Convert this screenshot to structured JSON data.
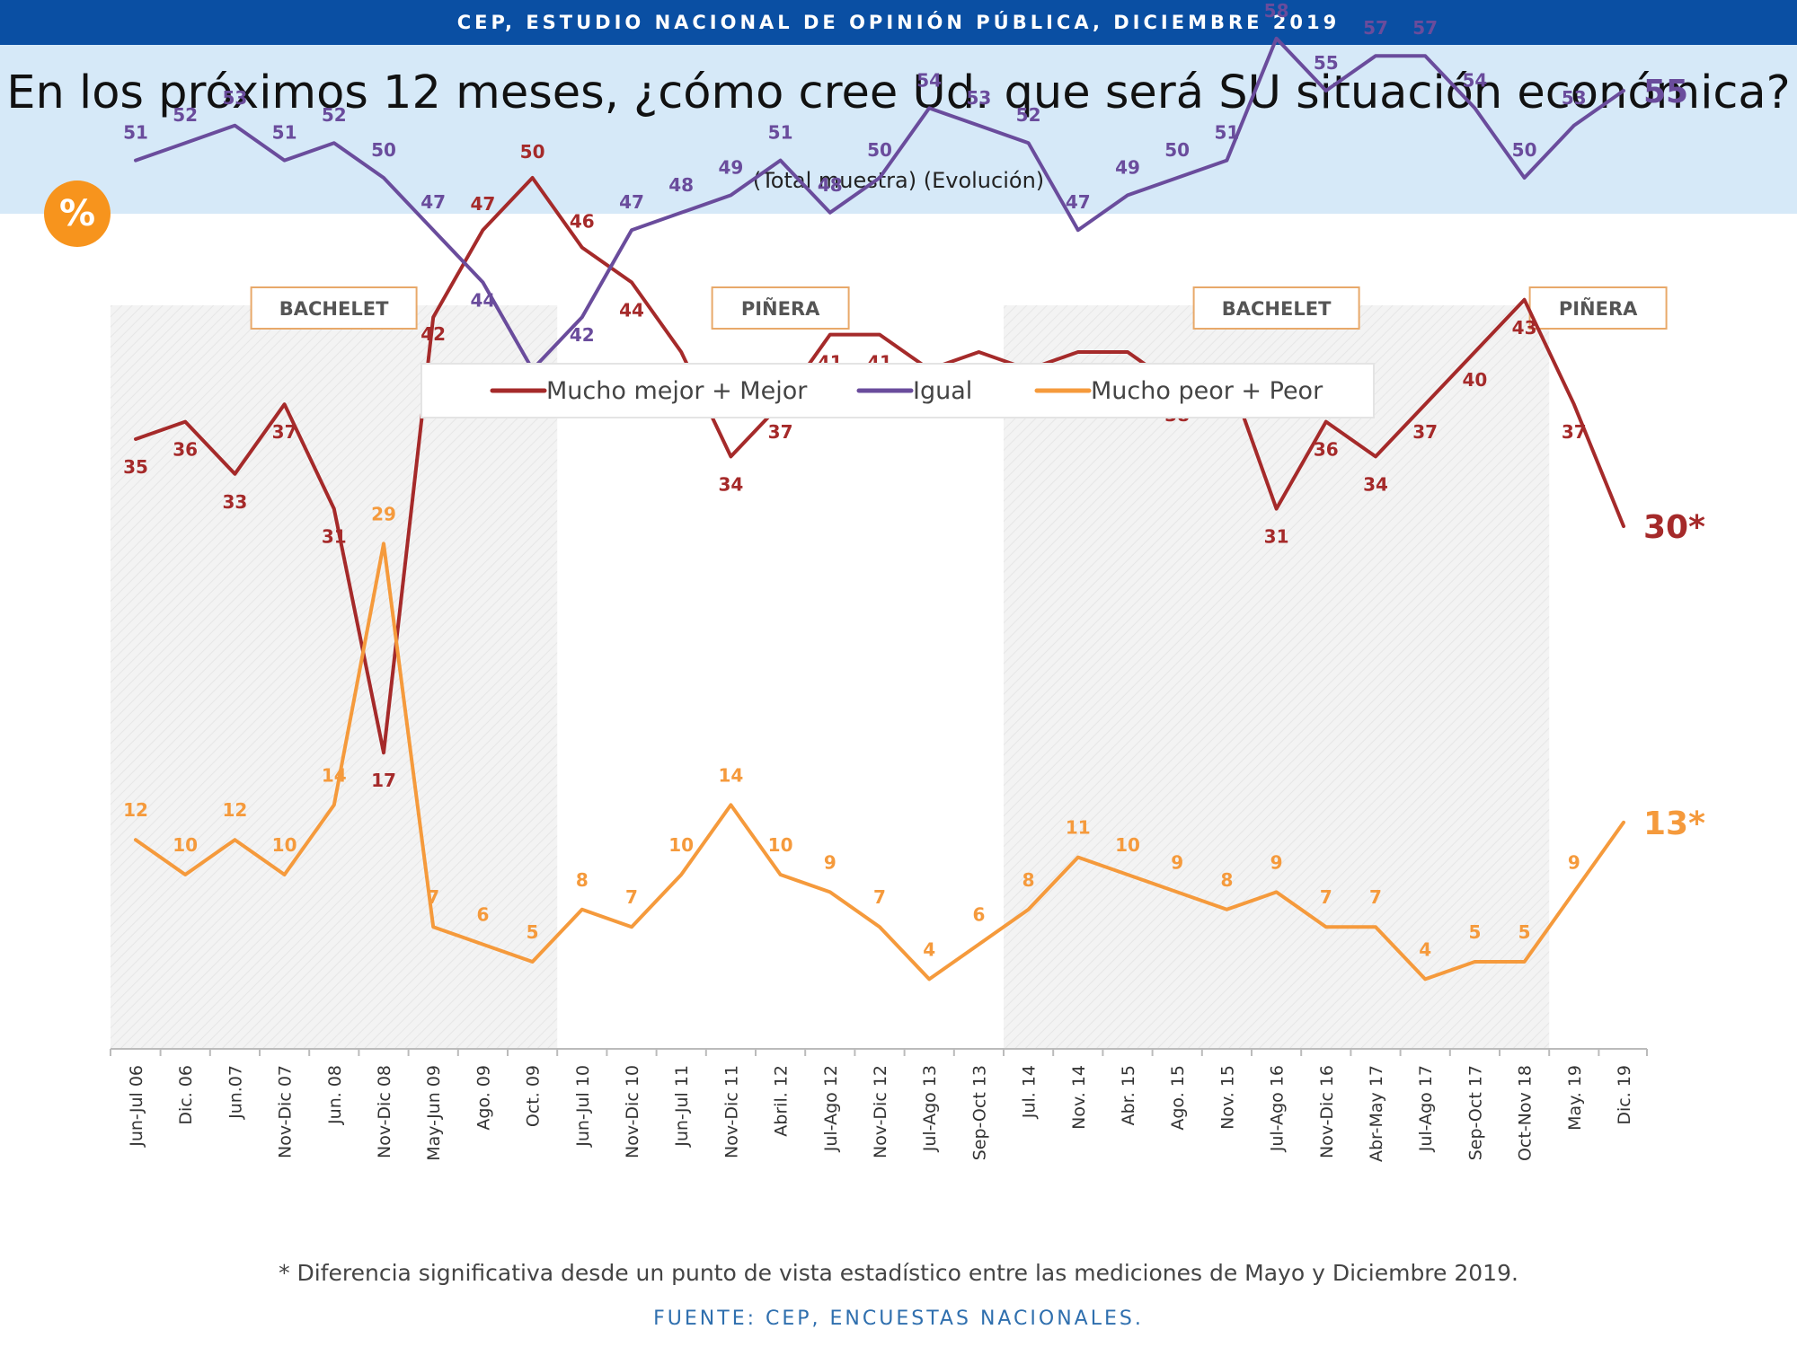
{
  "header": {
    "banner": "CEP, ESTUDIO NACIONAL DE OPINIÓN PÚBLICA, DICIEMBRE 2019",
    "title": "En los próximos 12 meses, ¿cómo cree Ud. que será SU situación económica?",
    "subtitle": "(Total muestra) (Evolución)",
    "badge": "%"
  },
  "footer": {
    "footnote": "* Diferencia significativa desde un punto de vista estadístico entre las mediciones de Mayo y Diciembre 2019.",
    "source": "FUENTE: CEP, ENCUESTAS NACIONALES."
  },
  "colors": {
    "mejor": "#a52a2a",
    "igual": "#6a4c9c",
    "peor": "#f59a3c",
    "period_box_border": "#e8a96a",
    "shade": "#f1f1f1"
  },
  "chart_data": {
    "type": "line",
    "ylim": [
      0,
      100
    ],
    "grid": false,
    "legend_position": "top-center",
    "categories": [
      "Jun-Jul 06",
      "Dic. 06",
      "Jun.07",
      "Nov-Dic 07",
      "Jun. 08",
      "Nov-Dic 08",
      "May-Jun 09",
      "Ago. 09",
      "Oct. 09",
      "Jun-Jul 10",
      "Nov-Dic 10",
      "Jun-Jul 11",
      "Nov-Dic 11",
      "Abril. 12",
      "Jul-Ago 12",
      "Nov-Dic 12",
      "Jul-Ago 13",
      "Sep-Oct 13",
      "Jul. 14",
      "Nov. 14",
      "Abr. 15",
      "Ago. 15",
      "Nov. 15",
      "Jul-Ago 16",
      "Nov-Dic 16",
      "Abr-May 17",
      "Jul-Ago 17",
      "Sep-Oct 17",
      "Oct-Nov 18",
      "May. 19",
      "Dic. 19"
    ],
    "series": [
      {
        "name": "Mucho mejor + Mejor",
        "key": "mejor",
        "values": [
          35,
          36,
          33,
          37,
          31,
          17,
          42,
          47,
          50,
          46,
          44,
          40,
          34,
          37,
          41,
          41,
          39,
          40,
          39,
          40,
          40,
          38,
          39,
          31,
          36,
          34,
          37,
          40,
          43,
          37,
          30
        ],
        "end_label": "30*"
      },
      {
        "name": "Igual",
        "key": "igual",
        "values": [
          51,
          52,
          53,
          51,
          52,
          50,
          47,
          44,
          39,
          42,
          47,
          48,
          49,
          51,
          48,
          50,
          54,
          53,
          52,
          47,
          49,
          50,
          51,
          58,
          55,
          57,
          57,
          54,
          50,
          53,
          55
        ],
        "end_label": "55"
      },
      {
        "name": "Mucho peor + Peor",
        "key": "peor",
        "values": [
          12,
          10,
          12,
          10,
          14,
          29,
          7,
          6,
          5,
          8,
          7,
          10,
          14,
          10,
          9,
          7,
          4,
          6,
          8,
          11,
          10,
          9,
          8,
          9,
          7,
          7,
          4,
          5,
          5,
          9,
          13
        ],
        "end_label": "13*"
      }
    ],
    "periods": [
      {
        "label": "BACHELET",
        "from": 0,
        "to": 8,
        "shaded": true
      },
      {
        "label": "PIÑERA",
        "from": 9,
        "to": 17,
        "shaded": false
      },
      {
        "label": "BACHELET",
        "from": 18,
        "to": 28,
        "shaded": true
      },
      {
        "label": "PIÑERA",
        "from": 29,
        "to": 30,
        "shaded": false
      }
    ]
  }
}
